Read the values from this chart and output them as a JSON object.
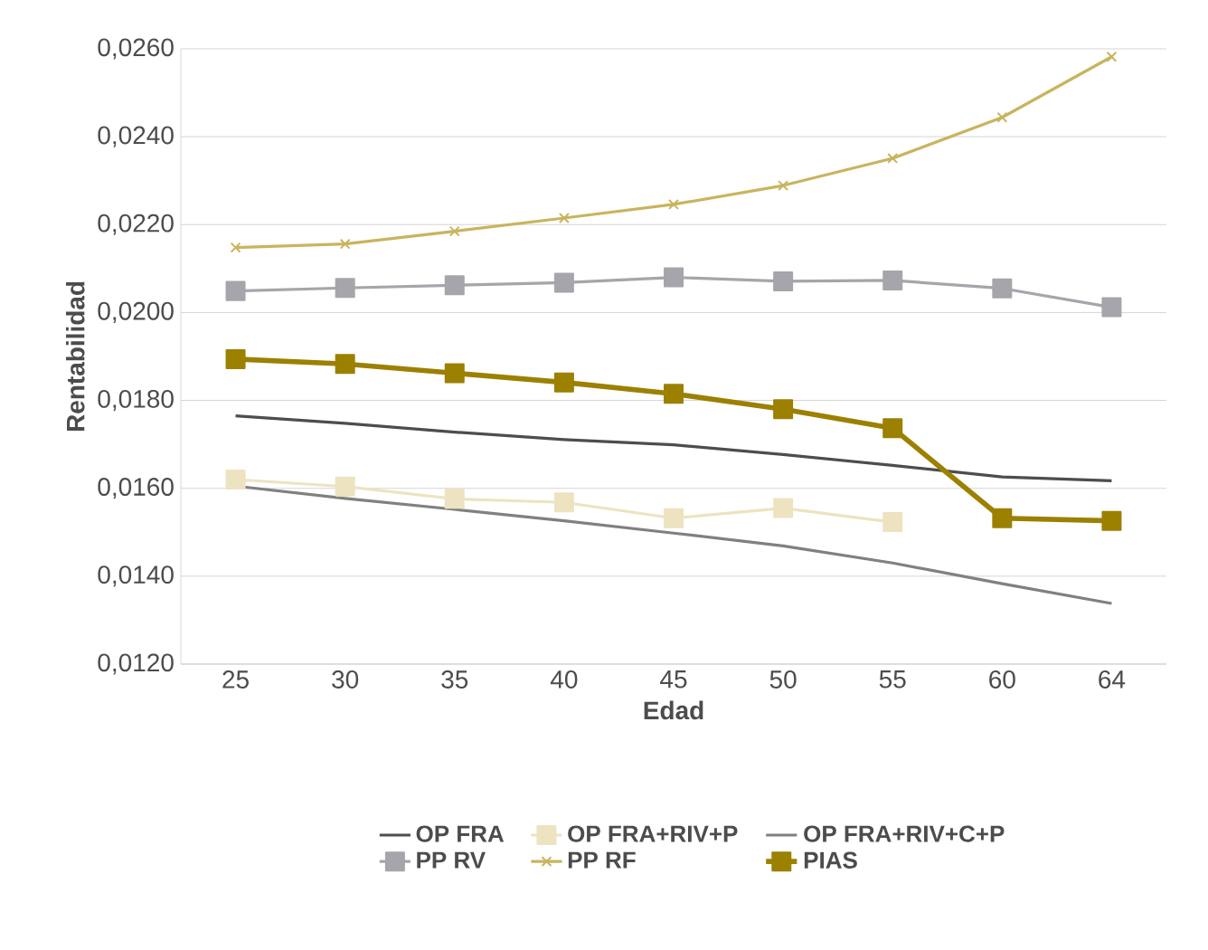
{
  "chart_data": {
    "type": "line",
    "xlabel": "Edad",
    "ylabel": "Rentabilidad",
    "categories": [
      "25",
      "30",
      "35",
      "40",
      "45",
      "50",
      "55",
      "60",
      "64"
    ],
    "ylim": [
      0.012,
      0.026
    ],
    "yticks": [
      {
        "value": 0.012,
        "label": "0,0120"
      },
      {
        "value": 0.014,
        "label": "0,0140"
      },
      {
        "value": 0.016,
        "label": "0,0160"
      },
      {
        "value": 0.018,
        "label": "0,0180"
      },
      {
        "value": 0.02,
        "label": "0,0200"
      },
      {
        "value": 0.022,
        "label": "0,0220"
      },
      {
        "value": 0.024,
        "label": "0,0240"
      },
      {
        "value": 0.026,
        "label": "0,0260"
      }
    ],
    "grid": "y",
    "legend": "bottom",
    "series": [
      {
        "name": "OP FRA",
        "color": "#4d4d4d",
        "marker": "none",
        "values": [
          0.01765,
          0.01748,
          0.01728,
          0.01711,
          0.01699,
          0.01677,
          0.01652,
          0.01626,
          0.01617
        ]
      },
      {
        "name": "OP FRA+RIV+P",
        "color": "#ede3c0",
        "marker": "square",
        "values": [
          0.0162,
          0.01604,
          0.01576,
          0.01568,
          0.01532,
          0.01555,
          0.01523,
          null,
          null
        ]
      },
      {
        "name": "OP FRA+RIV+C+P",
        "color": "#808080",
        "marker": "none",
        "values": [
          0.01605,
          0.01577,
          0.01552,
          0.01526,
          0.01498,
          0.01469,
          0.0143,
          0.01383,
          0.01338
        ]
      },
      {
        "name": "PP RV",
        "color": "#a5a5ab",
        "marker": "square",
        "values": [
          0.02049,
          0.02056,
          0.02062,
          0.02068,
          0.0208,
          0.02071,
          0.02073,
          0.02055,
          0.02012
        ]
      },
      {
        "name": "PP RF",
        "color": "#c9b45e",
        "marker": "cross",
        "values": [
          0.02148,
          0.02156,
          0.02185,
          0.02215,
          0.02246,
          0.02289,
          0.02351,
          0.02444,
          0.02582
        ]
      },
      {
        "name": "PIAS",
        "color": "#9c8000",
        "marker": "square",
        "values": [
          0.01894,
          0.01883,
          0.01862,
          0.01841,
          0.01815,
          0.0178,
          0.01737,
          0.01532,
          0.01526
        ]
      }
    ]
  }
}
